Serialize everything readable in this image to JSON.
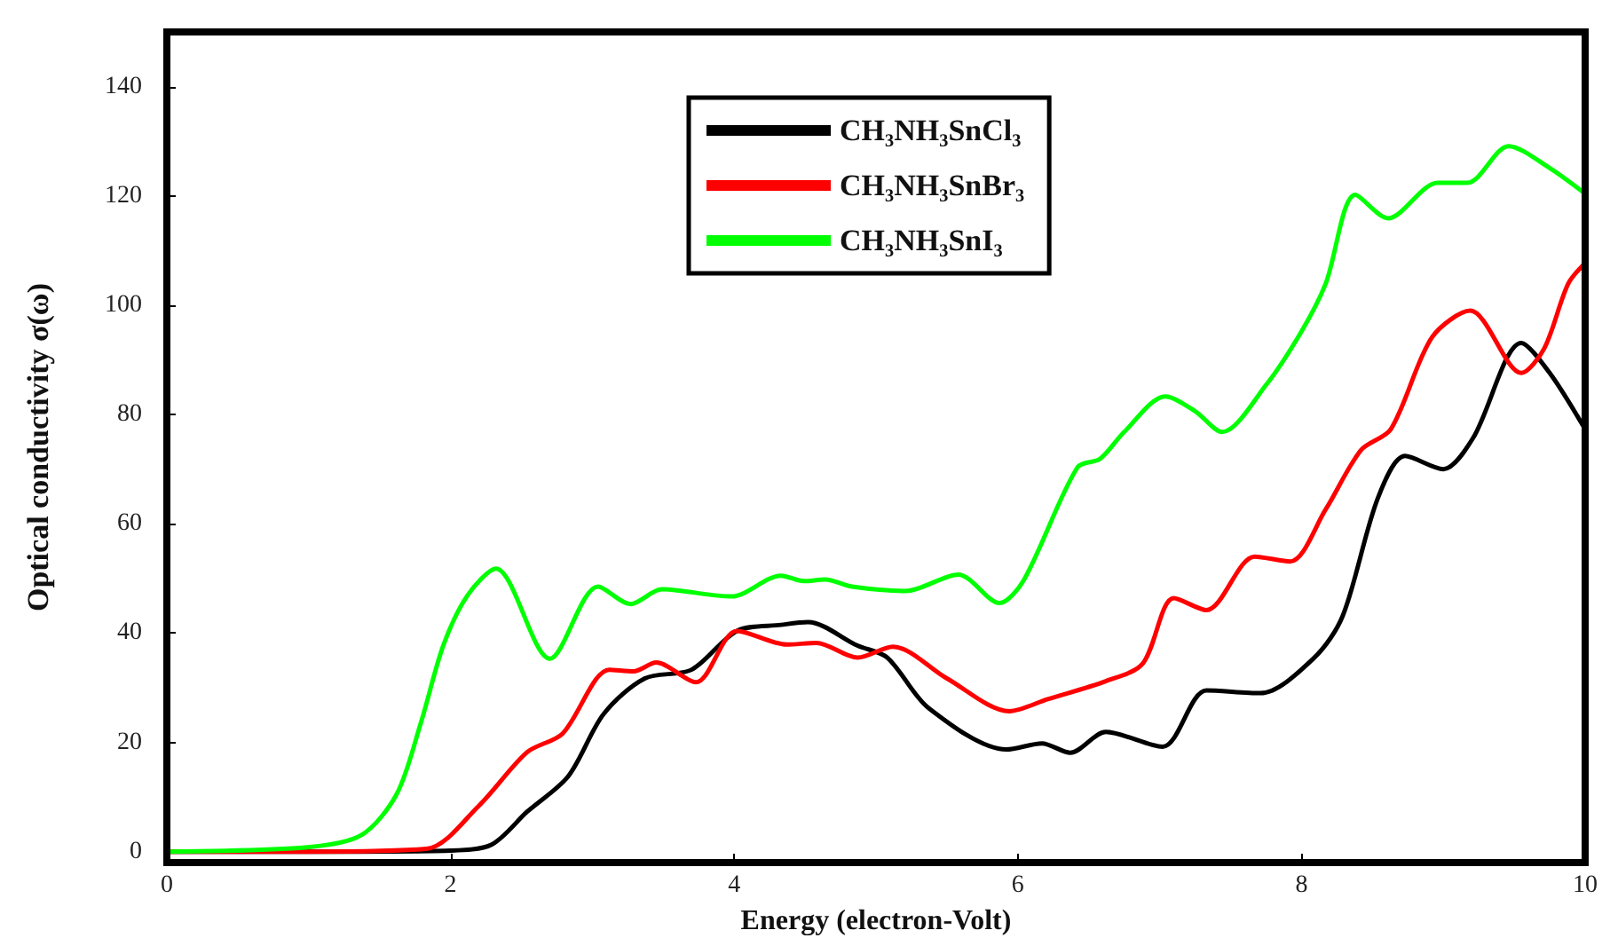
{
  "chart_data": {
    "type": "line",
    "xlabel": "Energy (electron-Volt)",
    "ylabel": "Optical conductivity σ(ω)",
    "xlim": [
      0,
      10
    ],
    "xticks": [
      0,
      2,
      4,
      6,
      8,
      10
    ],
    "ylim": [
      -2,
      150
    ],
    "yticks": [
      0,
      20,
      40,
      60,
      80,
      100,
      120,
      140
    ],
    "grid": false,
    "legend": "top right",
    "marker": "none",
    "line_style": "solid",
    "series": [
      {
        "name": "CH₃NH₃SnCl₃",
        "color": "#000000",
        "x": [
          0,
          1,
          2,
          2.29,
          2.54,
          2.83,
          3.08,
          3.37,
          3.7,
          4.02,
          4.33,
          4.52,
          4.87,
          5.08,
          5.37,
          5.92,
          6.17,
          6.37,
          6.62,
          7.02,
          7.33,
          7.71,
          8.09,
          8.29,
          8.54,
          8.73,
          9.0,
          9.21,
          9.55,
          9.75,
          10
        ],
        "values": [
          0,
          0,
          0.2,
          1.3,
          7.3,
          13.8,
          25.2,
          31.7,
          33.3,
          40.4,
          41.5,
          42,
          37.7,
          35.5,
          26.3,
          18.7,
          19.8,
          18.1,
          21.9,
          19.2,
          29.5,
          29,
          35.5,
          43.1,
          64.8,
          72.4,
          70,
          75.7,
          93.1,
          87.6,
          77.3
        ]
      },
      {
        "name": "CH₃NH₃SnBr₃",
        "color": "#ff0000",
        "x": [
          0,
          1,
          1.83,
          2.2,
          2.54,
          2.79,
          3.12,
          3.29,
          3.45,
          3.73,
          4.02,
          4.37,
          4.58,
          4.87,
          5.12,
          5.5,
          5.94,
          6.21,
          6.62,
          6.88,
          7.1,
          7.33,
          7.67,
          7.92,
          8.17,
          8.42,
          8.63,
          8.92,
          9.19,
          9.55,
          9.71,
          9.88,
          10
        ],
        "values": [
          0,
          0,
          0.5,
          8.4,
          18.2,
          21.6,
          33.3,
          33,
          34.6,
          31,
          40.4,
          37.9,
          38.2,
          35.5,
          37.5,
          31.7,
          25.7,
          27.9,
          31.2,
          34.4,
          46.4,
          44.2,
          54,
          53.1,
          62.6,
          73.5,
          77.3,
          94.1,
          99,
          87.6,
          92,
          103.9,
          107.7
        ]
      },
      {
        "name": "CH₃NH₃SnI₃",
        "color": "#00ff00",
        "x": [
          0,
          0.99,
          1.37,
          1.62,
          1.79,
          1.95,
          2.12,
          2.32,
          2.7,
          3.04,
          3.27,
          3.49,
          3.98,
          4.33,
          4.49,
          4.64,
          4.83,
          5.21,
          5.58,
          5.87,
          6.04,
          6.42,
          6.58,
          6.75,
          7.04,
          7.25,
          7.44,
          7.75,
          8.0,
          8.17,
          8.38,
          8.61,
          8.96,
          9.17,
          9.46,
          9.75,
          10
        ],
        "values": [
          0,
          0.8,
          3,
          10.5,
          23.5,
          37.8,
          46.9,
          51.8,
          35.3,
          48.5,
          45.3,
          48,
          46.7,
          50.5,
          49.5,
          49.8,
          48.5,
          47.7,
          50.7,
          45.5,
          49.6,
          70.3,
          71.9,
          76.8,
          83.3,
          80.6,
          76.8,
          85.4,
          95.2,
          103.9,
          120.2,
          115.9,
          122.4,
          122.4,
          129.1,
          125.1,
          120.4
        ]
      }
    ]
  }
}
